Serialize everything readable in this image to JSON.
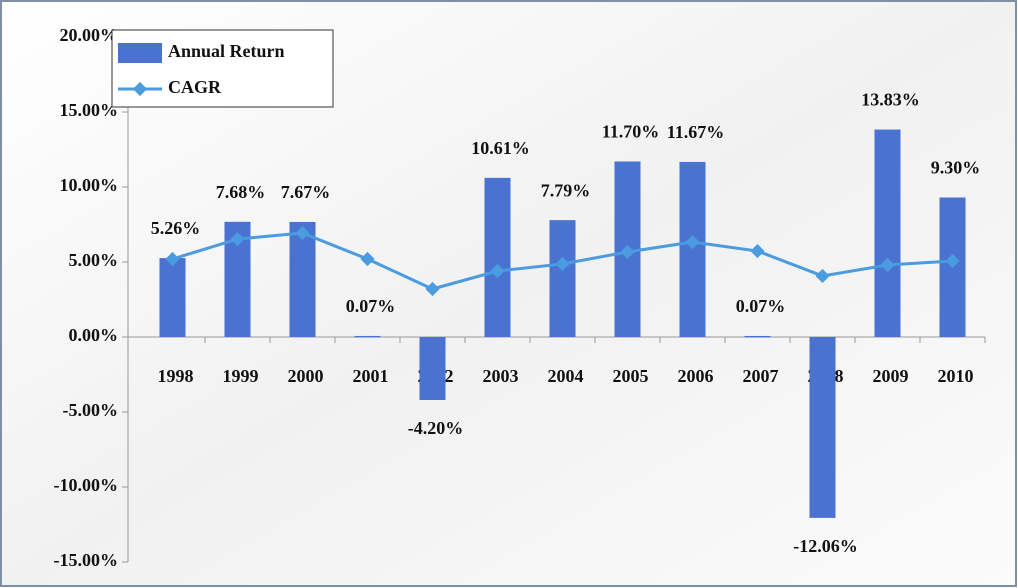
{
  "chart_data": {
    "type": "bar",
    "categories": [
      "1998",
      "1999",
      "2000",
      "2001",
      "2002",
      "2003",
      "2004",
      "2005",
      "2006",
      "2007",
      "2008",
      "2009",
      "2010"
    ],
    "series": [
      {
        "name": "Annual Return",
        "type": "bar",
        "color": "#4a72d0",
        "values": [
          5.26,
          7.68,
          7.67,
          0.07,
          -4.2,
          10.61,
          7.79,
          11.7,
          11.67,
          0.07,
          -12.06,
          13.83,
          9.3
        ],
        "value_labels": [
          "5.26%",
          "7.68%",
          "7.67%",
          "0.07%",
          "-4.20%",
          "10.61%",
          "7.79%",
          "11.70%",
          "11.67%",
          "0.07%",
          "-12.06%",
          "13.83%",
          "9.30%"
        ]
      },
      {
        "name": "CAGR",
        "type": "line",
        "color": "#4a9be0",
        "values": [
          5.2,
          6.53,
          6.93,
          5.2,
          3.2,
          4.4,
          4.87,
          5.67,
          6.33,
          5.73,
          4.07,
          4.8,
          5.07
        ]
      }
    ],
    "ylim": [
      -15,
      20
    ],
    "yticks": [
      {
        "value": -15,
        "label": "-15.00%"
      },
      {
        "value": -10,
        "label": "-10.00%"
      },
      {
        "value": -5,
        "label": "-5.00%"
      },
      {
        "value": 0,
        "label": "0.00%"
      },
      {
        "value": 5,
        "label": "5.00%"
      },
      {
        "value": 10,
        "label": "10.00%"
      },
      {
        "value": 15,
        "label": "15.00%"
      },
      {
        "value": 20,
        "label": "20.00%"
      }
    ],
    "grid": false,
    "legend": "top-left"
  }
}
